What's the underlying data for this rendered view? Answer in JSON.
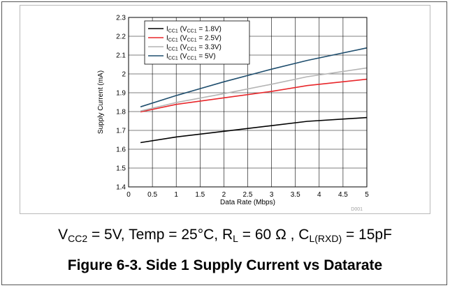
{
  "chart_data": {
    "type": "line",
    "xlabel": "Data Rate (Mbps)",
    "ylabel": "Supply Current (mA)",
    "xlim": [
      0,
      5
    ],
    "ylim": [
      1.4,
      2.3
    ],
    "xticks": [
      "0",
      "0.5",
      "1",
      "1.5",
      "2",
      "2.5",
      "3",
      "3.5",
      "4",
      "4.5",
      "5"
    ],
    "yticks": [
      "1.4",
      "1.5",
      "1.6",
      "1.7",
      "1.8",
      "1.9",
      "2",
      "2.1",
      "2.2",
      "2.3"
    ],
    "grid": true,
    "legend_position": "top-left",
    "series": [
      {
        "legend": {
          "main": "I",
          "sub1": "CC1",
          "mid": " (V",
          "sub2": "CC1",
          "tail": " = 1.8V)"
        },
        "color": "#000000",
        "x": [
          0.25,
          1,
          2,
          3,
          3.75,
          5
        ],
        "y": [
          1.635,
          1.665,
          1.695,
          1.725,
          1.748,
          1.768
        ]
      },
      {
        "legend": {
          "main": "I",
          "sub1": "CC1",
          "mid": " (V",
          "sub2": "CC1",
          "tail": " = 2.5V)"
        },
        "color": "#e8262a",
        "x": [
          0.25,
          1,
          2,
          3,
          3.75,
          5
        ],
        "y": [
          1.798,
          1.838,
          1.873,
          1.907,
          1.938,
          1.972
        ]
      },
      {
        "legend": {
          "main": "I",
          "sub1": "CC1",
          "mid": " (V",
          "sub2": "CC1",
          "tail": " = 3.3V)"
        },
        "color": "#b4b4b4",
        "x": [
          0.25,
          1,
          2,
          3,
          3.75,
          5
        ],
        "y": [
          1.803,
          1.848,
          1.895,
          1.945,
          1.985,
          2.032
        ]
      },
      {
        "legend": {
          "main": "I",
          "sub1": "CC1",
          "mid": " (V",
          "sub2": "CC1",
          "tail": " = 5V)"
        },
        "color": "#1f4e6e",
        "x": [
          0.25,
          1,
          2,
          3,
          3.75,
          5
        ],
        "y": [
          1.825,
          1.885,
          1.958,
          2.025,
          2.072,
          2.138
        ]
      }
    ],
    "doc_id": "D001"
  },
  "conditions": {
    "vcc2": {
      "main": "V",
      "sub": "CC2",
      "rest": " = 5V, Temp = 25°C, "
    },
    "rl": {
      "main": "R",
      "sub": "L",
      "rest": " = 60 Ω , "
    },
    "cl": {
      "main": "C",
      "sub": "L(RXD)",
      "rest": " = 15pF"
    }
  },
  "caption": "Figure 6-3. Side 1 Supply Current vs Datarate"
}
